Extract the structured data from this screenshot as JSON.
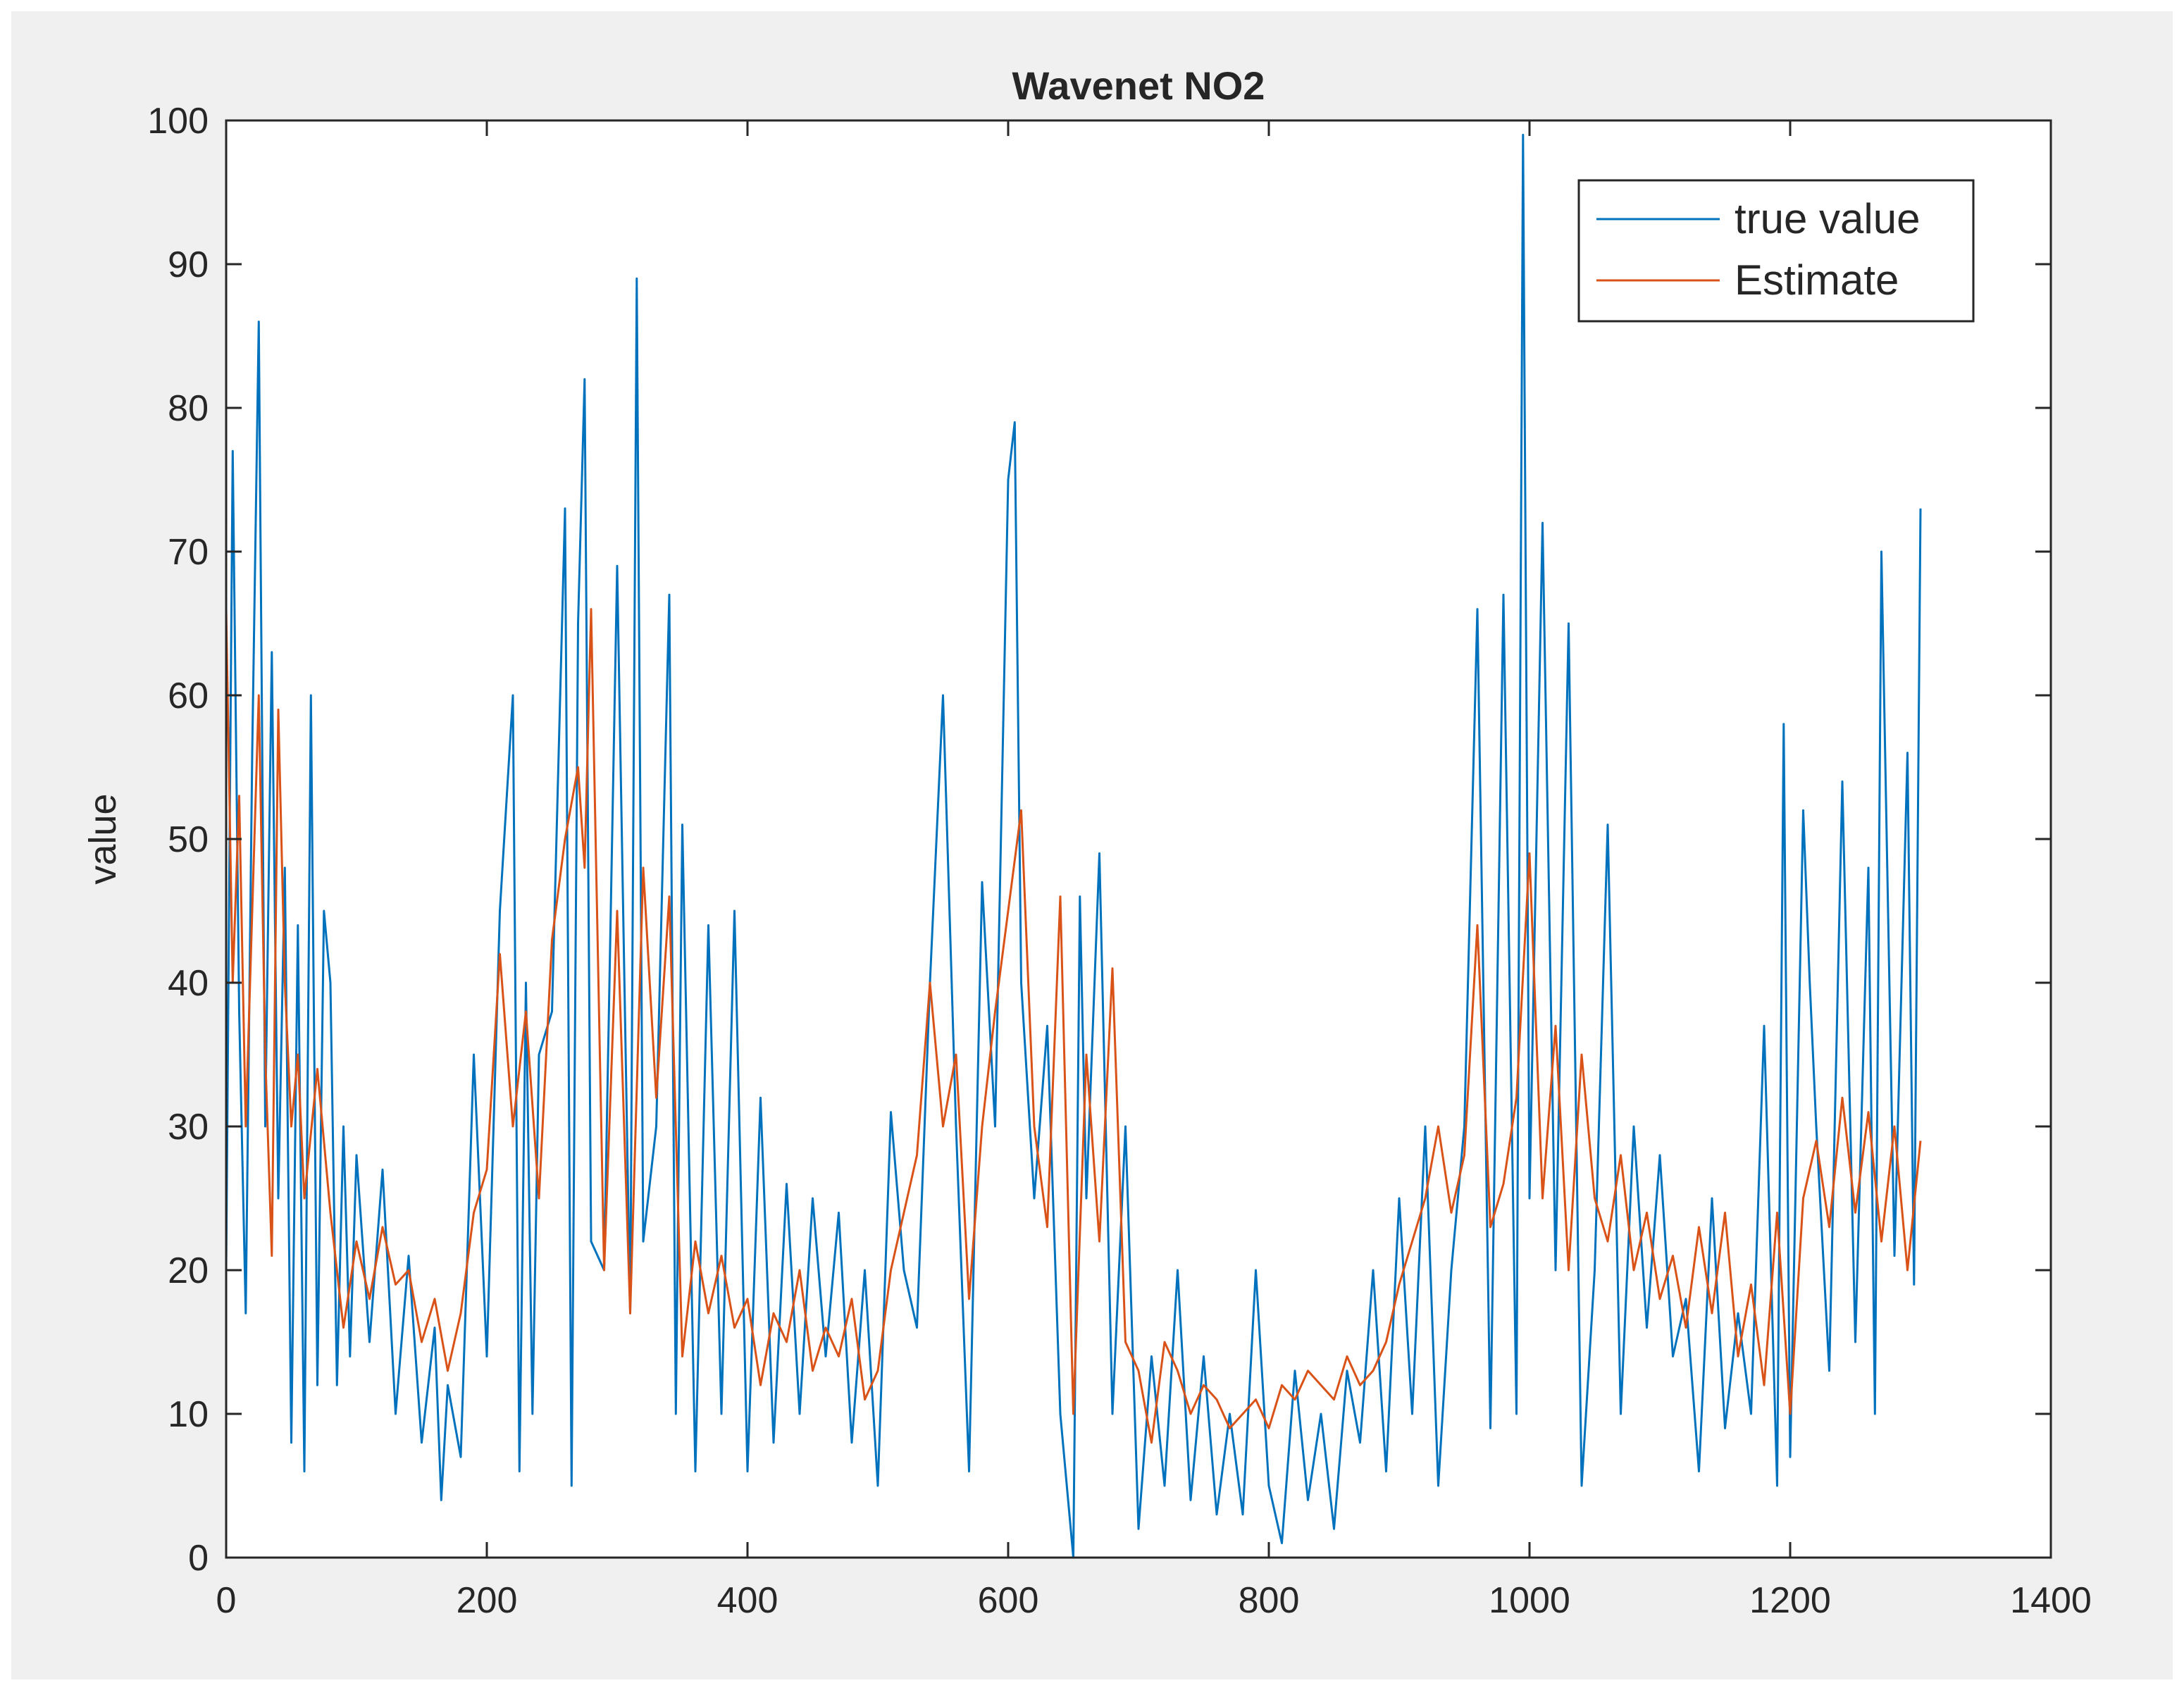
{
  "chart_data": {
    "type": "line",
    "title": "Wavenet NO2",
    "xlabel": "",
    "ylabel": "value",
    "xlim": [
      0,
      1400
    ],
    "ylim": [
      0,
      100
    ],
    "xticks": [
      0,
      200,
      400,
      600,
      800,
      1000,
      1200,
      1400
    ],
    "yticks": [
      0,
      10,
      20,
      30,
      40,
      50,
      60,
      70,
      80,
      90,
      100
    ],
    "xtick_labels": [
      "0",
      "200",
      "400",
      "600",
      "800",
      "1000",
      "1200",
      "1400"
    ],
    "ytick_labels": [
      "0",
      "10",
      "20",
      "30",
      "40",
      "50",
      "60",
      "70",
      "80",
      "90",
      "100"
    ],
    "grid": false,
    "legend_position": "top-right",
    "colors": {
      "true_value": "#0072BD",
      "estimate": "#D95319",
      "figure_background": "#f0f0f0",
      "axes_background": "#ffffff",
      "axes_color": "#262626"
    },
    "series": [
      {
        "name": "true value",
        "color": "#0072BD",
        "x": [
          0,
          5,
          10,
          15,
          20,
          25,
          30,
          35,
          40,
          45,
          50,
          55,
          60,
          65,
          70,
          75,
          80,
          85,
          90,
          95,
          100,
          110,
          120,
          130,
          140,
          150,
          160,
          165,
          170,
          180,
          190,
          200,
          210,
          220,
          225,
          230,
          235,
          240,
          250,
          260,
          265,
          270,
          275,
          280,
          290,
          300,
          310,
          315,
          320,
          330,
          340,
          345,
          350,
          360,
          370,
          380,
          390,
          400,
          410,
          420,
          430,
          440,
          450,
          460,
          470,
          480,
          490,
          500,
          510,
          520,
          530,
          540,
          550,
          560,
          570,
          580,
          590,
          600,
          605,
          610,
          620,
          630,
          640,
          650,
          655,
          660,
          670,
          680,
          690,
          700,
          710,
          720,
          730,
          740,
          750,
          760,
          770,
          780,
          790,
          800,
          810,
          820,
          830,
          840,
          850,
          860,
          870,
          880,
          890,
          900,
          910,
          920,
          930,
          940,
          950,
          960,
          970,
          980,
          990,
          995,
          1000,
          1010,
          1020,
          1030,
          1040,
          1050,
          1060,
          1070,
          1080,
          1090,
          1100,
          1110,
          1120,
          1130,
          1140,
          1150,
          1160,
          1170,
          1180,
          1190,
          1195,
          1200,
          1210,
          1215,
          1220,
          1230,
          1240,
          1250,
          1260,
          1265,
          1270,
          1280,
          1290,
          1295,
          1300
        ],
        "y": [
          20,
          77,
          38,
          17,
          56,
          86,
          30,
          63,
          25,
          48,
          8,
          44,
          6,
          60,
          12,
          45,
          40,
          12,
          30,
          14,
          28,
          15,
          27,
          10,
          21,
          8,
          16,
          4,
          12,
          7,
          35,
          14,
          45,
          60,
          6,
          40,
          10,
          35,
          38,
          73,
          5,
          65,
          82,
          22,
          20,
          69,
          17,
          89,
          22,
          30,
          67,
          10,
          51,
          6,
          44,
          10,
          45,
          6,
          32,
          8,
          26,
          10,
          25,
          14,
          24,
          8,
          20,
          5,
          31,
          20,
          16,
          40,
          60,
          30,
          6,
          47,
          30,
          75,
          79,
          40,
          25,
          37,
          10,
          0,
          46,
          25,
          49,
          10,
          30,
          2,
          14,
          5,
          20,
          4,
          14,
          3,
          10,
          3,
          20,
          5,
          1,
          13,
          4,
          10,
          2,
          13,
          8,
          20,
          6,
          25,
          10,
          30,
          5,
          20,
          30,
          66,
          9,
          67,
          10,
          99,
          25,
          72,
          20,
          65,
          5,
          20,
          51,
          10,
          30,
          16,
          28,
          14,
          18,
          6,
          25,
          9,
          17,
          10,
          37,
          5,
          58,
          7,
          52,
          40,
          30,
          13,
          54,
          15,
          48,
          10,
          70,
          21,
          56,
          19,
          73
        ]
      },
      {
        "name": "Estimate",
        "color": "#D95319",
        "x": [
          0,
          5,
          10,
          15,
          20,
          25,
          30,
          35,
          40,
          45,
          50,
          55,
          60,
          70,
          80,
          90,
          100,
          110,
          120,
          130,
          140,
          150,
          160,
          170,
          180,
          190,
          200,
          210,
          220,
          230,
          240,
          250,
          260,
          270,
          275,
          280,
          290,
          300,
          310,
          320,
          330,
          340,
          350,
          360,
          370,
          380,
          390,
          400,
          410,
          420,
          430,
          440,
          450,
          460,
          470,
          480,
          490,
          500,
          510,
          520,
          530,
          540,
          550,
          560,
          570,
          580,
          590,
          600,
          610,
          620,
          630,
          640,
          650,
          660,
          670,
          680,
          690,
          700,
          710,
          720,
          730,
          740,
          750,
          760,
          770,
          780,
          790,
          800,
          810,
          820,
          830,
          840,
          850,
          860,
          870,
          880,
          890,
          900,
          910,
          920,
          930,
          940,
          950,
          960,
          970,
          980,
          990,
          1000,
          1010,
          1020,
          1030,
          1040,
          1050,
          1060,
          1070,
          1080,
          1090,
          1100,
          1110,
          1120,
          1130,
          1140,
          1150,
          1160,
          1170,
          1180,
          1190,
          1200,
          1210,
          1220,
          1230,
          1240,
          1250,
          1260,
          1270,
          1280,
          1290,
          1300
        ],
        "y": [
          66,
          40,
          53,
          30,
          45,
          60,
          35,
          21,
          59,
          40,
          30,
          35,
          25,
          34,
          24,
          16,
          22,
          18,
          23,
          19,
          20,
          15,
          18,
          13,
          17,
          24,
          27,
          42,
          30,
          38,
          25,
          43,
          50,
          55,
          48,
          66,
          20,
          45,
          17,
          48,
          32,
          46,
          14,
          22,
          17,
          21,
          16,
          18,
          12,
          17,
          15,
          20,
          13,
          16,
          14,
          18,
          11,
          13,
          20,
          24,
          28,
          40,
          30,
          35,
          18,
          30,
          38,
          45,
          52,
          30,
          23,
          46,
          10,
          35,
          22,
          41,
          15,
          13,
          8,
          15,
          13,
          10,
          12,
          11,
          9,
          10,
          11,
          9,
          12,
          11,
          13,
          12,
          11,
          14,
          12,
          13,
          15,
          19,
          22,
          25,
          30,
          24,
          28,
          44,
          23,
          26,
          32,
          49,
          25,
          37,
          20,
          35,
          25,
          22,
          28,
          20,
          24,
          18,
          21,
          16,
          23,
          17,
          24,
          14,
          19,
          12,
          24,
          10,
          25,
          29,
          23,
          32,
          24,
          31,
          22,
          30,
          20,
          29
        ]
      }
    ]
  }
}
